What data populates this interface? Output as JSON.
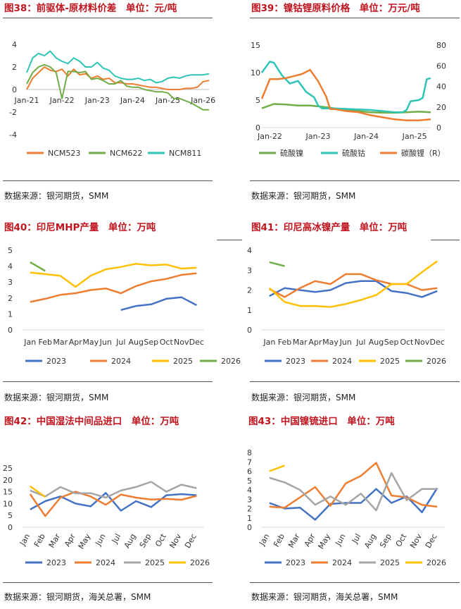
{
  "panels": [
    {
      "title": "图38：前驱体-原材料价差　单位：元/吨",
      "source": "数据来源：银河期货，SMM"
    },
    {
      "title": "图39：镍钴锂原料价格　单位：万元/吨",
      "source": "数据来源：银河期货，SMM"
    },
    {
      "title": "图40：印尼MHP产量　单位：万吨",
      "source": "数据来源：银河期货，SMM"
    },
    {
      "title": "图41：印尼高冰镍产量　单位：万吨",
      "source": "数据来源：银河期货，SMM"
    },
    {
      "title": "图42：中国湿法中间品进口　单位：万吨",
      "source": "数据来源：银河期货，海关总署，SMM"
    },
    {
      "title": "图43：中国镍锍进口　单位：万吨",
      "source": "数据来源：银河期货，海关总署，SMM"
    }
  ],
  "colors": {
    "blue": "#4472c4",
    "orange": "#ed7d31",
    "gray": "#a5a5a5",
    "yellow": "#ffc000",
    "green": "#70ad47",
    "teal": "#2ec4b6"
  },
  "chart_data": [
    {
      "id": "fig38",
      "type": "line",
      "title": "前驱体-原材料价差",
      "ylim": [
        -4,
        4
      ],
      "yticks": [
        -4,
        -2,
        0,
        2,
        4
      ],
      "xlim": [
        0,
        62
      ],
      "xticks": [
        0,
        12,
        24,
        36,
        48,
        60
      ],
      "xticklabels": [
        "Jan-21",
        "Jan-22",
        "Jan-23",
        "Jan-24",
        "Jan-25",
        "Jan-26"
      ],
      "series": [
        {
          "name": "NCM523",
          "color": "#ed7d31",
          "x": [
            0,
            2,
            4,
            6,
            8,
            10,
            12,
            14,
            16,
            18,
            20,
            22,
            24,
            26,
            28,
            30,
            32,
            34,
            36,
            38,
            40,
            42,
            44,
            46,
            48,
            50,
            52,
            54,
            56,
            58,
            60,
            62
          ],
          "y": [
            0.0,
            1.0,
            1.5,
            2.0,
            1.7,
            1.6,
            1.8,
            1.2,
            1.8,
            1.3,
            1.4,
            1.0,
            1.2,
            0.9,
            1.0,
            0.6,
            0.6,
            0.5,
            0.5,
            0.4,
            0.3,
            0.2,
            0.2,
            0.1,
            0.0,
            0.0,
            0.0,
            0.1,
            0.1,
            0.2,
            0.7,
            0.8
          ]
        },
        {
          "name": "NCM622",
          "color": "#70ad47",
          "x": [
            0,
            2,
            4,
            6,
            8,
            10,
            12,
            14,
            16,
            18,
            20,
            22,
            24,
            26,
            28,
            30,
            32,
            34,
            36,
            38,
            40,
            42,
            44,
            46,
            48,
            50,
            52,
            54,
            56,
            58,
            60,
            62
          ],
          "y": [
            0.5,
            1.5,
            2.0,
            2.2,
            2.0,
            1.5,
            -0.8,
            1.6,
            1.6,
            1.5,
            1.6,
            0.9,
            1.0,
            0.8,
            0.5,
            0.5,
            0.8,
            0.3,
            0.2,
            0.2,
            0.0,
            -0.1,
            -0.2,
            -0.2,
            -0.3,
            -0.8,
            -0.8,
            -1.0,
            -1.2,
            -1.5,
            -1.8,
            -1.8
          ]
        },
        {
          "name": "NCM811",
          "color": "#2ec4b6",
          "x": [
            0,
            2,
            4,
            6,
            8,
            10,
            12,
            14,
            16,
            18,
            20,
            22,
            24,
            26,
            28,
            30,
            32,
            34,
            36,
            38,
            40,
            42,
            44,
            46,
            48,
            50,
            52,
            54,
            56,
            58,
            60,
            62
          ],
          "y": [
            1.5,
            2.8,
            3.2,
            3.0,
            3.4,
            2.8,
            2.5,
            2.3,
            2.8,
            2.5,
            2.0,
            2.0,
            2.4,
            1.9,
            1.7,
            1.2,
            1.0,
            0.9,
            0.9,
            1.0,
            0.8,
            0.9,
            0.6,
            0.7,
            1.0,
            1.1,
            1.0,
            1.2,
            1.3,
            1.3,
            1.3,
            1.4
          ]
        }
      ]
    },
    {
      "id": "fig39",
      "type": "line",
      "title": "镍钴锂原料价格",
      "ylim": [
        0,
        15
      ],
      "yticks": [
        0,
        5,
        10,
        15
      ],
      "y2lim": [
        0,
        80
      ],
      "y2ticks": [
        0,
        20,
        40,
        60,
        80
      ],
      "xlim": [
        0,
        42
      ],
      "xticks": [
        2,
        14,
        26,
        38
      ],
      "xticklabels": [
        "Jan-22",
        "Jan-23",
        "Jan-24",
        "Jan-25"
      ],
      "series": [
        {
          "name": "硫酸镍",
          "axis": "left",
          "color": "#70ad47",
          "x": [
            0,
            3,
            6,
            9,
            12,
            15,
            18,
            21,
            24,
            27,
            30,
            33,
            36,
            39,
            42
          ],
          "y": [
            3.5,
            4.3,
            4.2,
            4.0,
            4.0,
            3.8,
            3.5,
            3.2,
            3.0,
            2.8,
            2.7,
            2.7,
            2.8,
            2.9,
            2.8
          ]
        },
        {
          "name": "硫酸钴",
          "axis": "left",
          "color": "#2ec4b6",
          "x": [
            0,
            2,
            3,
            5,
            7,
            9,
            11,
            13,
            14,
            15,
            18,
            21,
            24,
            27,
            30,
            33,
            35,
            36,
            37,
            39,
            40,
            41,
            42
          ],
          "y": [
            10.0,
            12.0,
            11.8,
            9.5,
            8.0,
            8.5,
            6.5,
            5.5,
            4.0,
            3.5,
            3.5,
            3.4,
            3.3,
            3.2,
            3.0,
            2.8,
            2.8,
            3.2,
            4.8,
            5.0,
            5.4,
            8.8,
            9.0
          ]
        },
        {
          "name": "碳酸锂（R）",
          "axis": "right",
          "color": "#ed7d31",
          "x": [
            0,
            2,
            4,
            6,
            8,
            10,
            12,
            14,
            16,
            17,
            18,
            21,
            24,
            27,
            30,
            33,
            36,
            39,
            42
          ],
          "y": [
            28,
            47,
            47,
            48,
            50,
            52,
            56,
            45,
            30,
            18,
            18,
            16,
            15,
            12,
            10,
            8,
            7,
            7,
            8
          ]
        }
      ]
    },
    {
      "id": "fig40",
      "type": "line",
      "title": "印尼MHP产量",
      "ylim": [
        0,
        5
      ],
      "yticks": [
        0,
        1,
        2,
        3,
        4,
        5
      ],
      "categories": [
        "Jan",
        "Feb",
        "Mar",
        "Apr",
        "May",
        "Jun",
        "Jul",
        "Aug",
        "Sep",
        "Oct",
        "Nov",
        "Dec"
      ],
      "series": [
        {
          "name": "2023",
          "color": "#4472c4",
          "values": [
            null,
            null,
            null,
            null,
            null,
            null,
            1.25,
            1.5,
            1.6,
            1.95,
            2.05,
            1.55
          ]
        },
        {
          "name": "2024",
          "color": "#ed7d31",
          "values": [
            1.75,
            1.95,
            2.2,
            2.3,
            2.5,
            2.6,
            2.3,
            2.75,
            3.05,
            3.2,
            3.45,
            3.55
          ]
        },
        {
          "name": "2025",
          "color": "#ffc000",
          "values": [
            3.6,
            3.5,
            3.4,
            2.7,
            3.4,
            3.8,
            3.95,
            4.15,
            4.05,
            4.1,
            3.85,
            3.9
          ]
        },
        {
          "name": "2026",
          "color": "#70ad47",
          "values": [
            4.25,
            3.7,
            null,
            null,
            null,
            null,
            null,
            null,
            null,
            null,
            null,
            null
          ]
        }
      ]
    },
    {
      "id": "fig41",
      "type": "line",
      "title": "印尼高冰镍产量",
      "ylim": [
        0,
        4
      ],
      "yticks": [
        0,
        1,
        2,
        3,
        4
      ],
      "categories": [
        "Jan",
        "Feb",
        "Mar",
        "Apr",
        "May",
        "Jun",
        "Jul",
        "Aug",
        "Sep",
        "Oct",
        "Nov",
        "Dec"
      ],
      "series": [
        {
          "name": "2023",
          "color": "#4472c4",
          "values": [
            1.7,
            2.1,
            2.0,
            1.9,
            2.0,
            2.35,
            2.45,
            2.45,
            1.95,
            1.85,
            1.65,
            1.95
          ]
        },
        {
          "name": "2024",
          "color": "#ed7d31",
          "values": [
            2.05,
            1.65,
            2.1,
            2.45,
            2.3,
            2.8,
            2.8,
            2.5,
            2.3,
            2.3,
            2.0,
            2.1
          ]
        },
        {
          "name": "2025",
          "color": "#ffc000",
          "values": [
            2.1,
            1.4,
            1.2,
            1.2,
            1.15,
            1.3,
            1.5,
            1.75,
            2.3,
            2.3,
            2.9,
            3.45
          ]
        },
        {
          "name": "2026",
          "color": "#70ad47",
          "values": [
            3.4,
            3.2,
            null,
            null,
            null,
            null,
            null,
            null,
            null,
            null,
            null,
            null
          ]
        }
      ]
    },
    {
      "id": "fig42",
      "type": "line",
      "title": "中国湿法中间品进口",
      "ylim": [
        0,
        25
      ],
      "yticks": [
        0,
        5,
        10,
        15,
        20,
        25
      ],
      "rotate_xticks": true,
      "categories": [
        "Jan",
        "Feb",
        "Mar",
        "Apr",
        "May",
        "Jun",
        "Jul",
        "Aug",
        "Sep",
        "Oct",
        "Nov",
        "Dec"
      ],
      "series": [
        {
          "name": "2023",
          "color": "#4472c4",
          "values": [
            7.5,
            11.0,
            13.0,
            10.0,
            8.8,
            14.5,
            7.0,
            11.0,
            8.5,
            13.5,
            14.0,
            13.5
          ]
        },
        {
          "name": "2024",
          "color": "#ed7d31",
          "values": [
            14.0,
            4.7,
            12.5,
            15.0,
            13.0,
            9.5,
            13.8,
            12.5,
            11.7,
            12.0,
            11.6,
            13.2
          ]
        },
        {
          "name": "2025",
          "color": "#a5a5a5",
          "values": [
            15.5,
            13.0,
            17.0,
            14.3,
            14.4,
            12.5,
            15.5,
            17.0,
            19.2,
            15.0,
            18.0,
            16.5
          ]
        },
        {
          "name": "2026",
          "color": "#ffc000",
          "values": [
            17.3,
            12.8,
            null,
            null,
            null,
            null,
            null,
            null,
            null,
            null,
            null,
            null
          ]
        }
      ]
    },
    {
      "id": "fig43",
      "type": "line",
      "title": "中国镍锍进口",
      "ylim": [
        0,
        8
      ],
      "yticks": [
        0,
        1,
        2,
        3,
        4,
        5,
        6,
        7,
        8
      ],
      "rotate_xticks": true,
      "categories": [
        "Jan",
        "Feb",
        "Mar",
        "Apr",
        "May",
        "Jun",
        "Jul",
        "Aug",
        "Sep",
        "Oct",
        "Nov",
        "Dec"
      ],
      "series": [
        {
          "name": "2023",
          "color": "#4472c4",
          "values": [
            2.6,
            2.0,
            2.1,
            0.8,
            2.5,
            2.6,
            2.6,
            4.1,
            2.6,
            3.3,
            1.6,
            4.2
          ]
        },
        {
          "name": "2024",
          "color": "#ed7d31",
          "values": [
            2.2,
            2.1,
            3.2,
            4.3,
            2.3,
            4.7,
            5.5,
            6.9,
            3.4,
            3.2,
            2.4,
            2.2
          ]
        },
        {
          "name": "2025",
          "color": "#a5a5a5",
          "values": [
            5.3,
            4.8,
            4.0,
            2.4,
            3.3,
            2.4,
            3.6,
            1.8,
            5.8,
            2.9,
            4.1,
            4.1
          ]
        },
        {
          "name": "2026",
          "color": "#ffc000",
          "values": [
            6.0,
            6.6,
            null,
            null,
            null,
            null,
            null,
            null,
            null,
            null,
            null,
            null
          ]
        }
      ]
    }
  ]
}
